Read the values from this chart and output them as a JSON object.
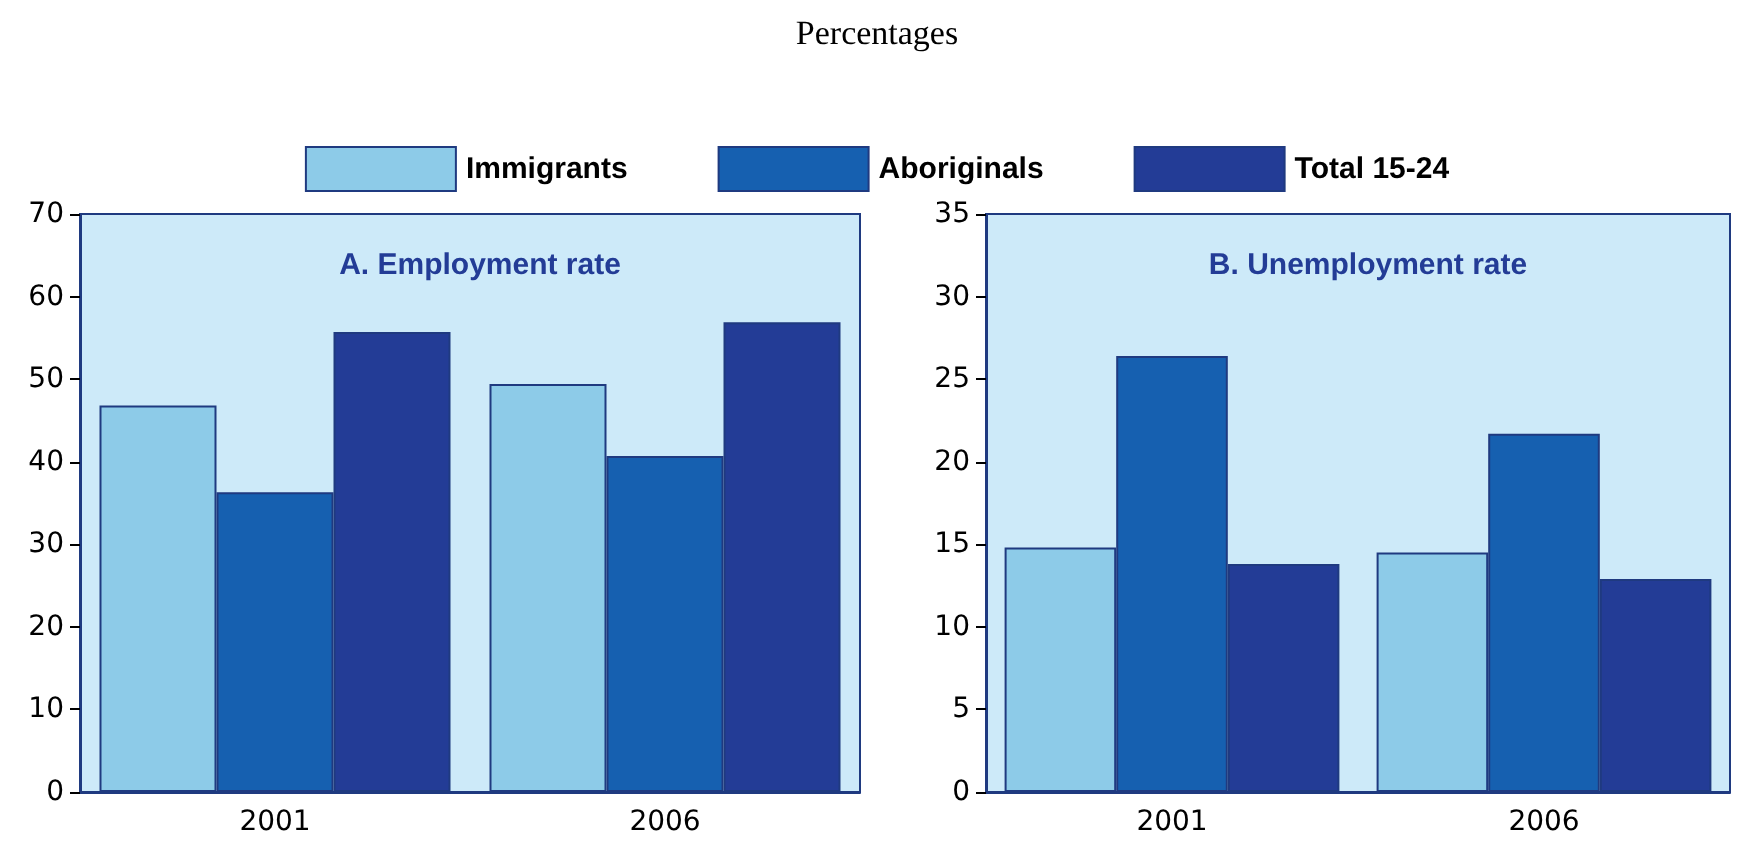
{
  "chart_data": [
    {
      "type": "bar",
      "title": "A. Employment rate",
      "annotations": [
        "Percentages"
      ],
      "categories": [
        "2001",
        "2006"
      ],
      "series": [
        {
          "name": "Immigrants",
          "color": "#8dcbe8",
          "values": [
            46.8,
            49.4
          ]
        },
        {
          "name": "Aboriginals",
          "color": "#1660b0",
          "values": [
            36.3,
            40.7
          ]
        },
        {
          "name": "Total 15-24",
          "color": "#233c96",
          "values": [
            55.7,
            56.9
          ]
        }
      ],
      "ylim": [
        0,
        70
      ],
      "yticks": [
        0,
        10,
        20,
        30,
        40,
        50,
        60,
        70
      ],
      "grid": false,
      "legend": "top"
    },
    {
      "type": "bar",
      "title": "B. Unemployment rate",
      "categories": [
        "2001",
        "2006"
      ],
      "series": [
        {
          "name": "Immigrants",
          "color": "#8dcbe8",
          "values": [
            14.8,
            14.5
          ]
        },
        {
          "name": "Aboriginals",
          "color": "#1660b0",
          "values": [
            26.4,
            21.7
          ]
        },
        {
          "name": "Total 15-24",
          "color": "#233c96",
          "values": [
            13.8,
            12.9
          ]
        }
      ],
      "ylim": [
        0,
        35
      ],
      "yticks": [
        0,
        5,
        10,
        15,
        20,
        25,
        30,
        35
      ],
      "grid": false,
      "legend": "top"
    }
  ]
}
